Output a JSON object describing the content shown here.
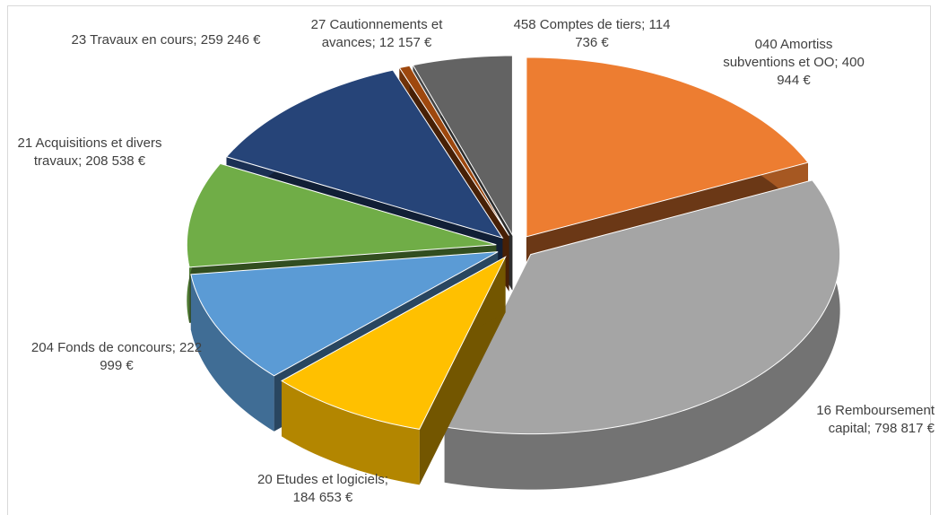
{
  "chart_data": {
    "type": "pie3d",
    "categories": [
      "040 Amortiss subventions et OO",
      "16 Remboursement capital",
      "20 Etudes et logiciels",
      "204 Fonds de concours",
      "21 Acquisitions et divers travaux",
      "23 Travaux en cours",
      "27 Cautionnements et avances",
      "458 Comptes de tiers"
    ],
    "values": [
      400944,
      798817,
      184653,
      222999,
      208538,
      259246,
      12157,
      114736
    ],
    "value_labels": [
      "400 944 €",
      "798 817 €",
      "184 653 €",
      "222 999 €",
      "208 538 €",
      "259 246 €",
      "12 157 €",
      "114 736 €"
    ],
    "separator": ";",
    "colors": [
      "#ED7D31",
      "#A5A5A5",
      "#FFC000",
      "#5B9BD5",
      "#70AD47",
      "#264478",
      "#9E480E",
      "#636363"
    ]
  }
}
